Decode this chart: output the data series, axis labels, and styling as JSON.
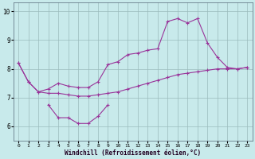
{
  "xlabel": "Windchill (Refroidissement éolien,°C)",
  "bg_color": "#c8eaeb",
  "grid_color": "#9bbcbd",
  "line_color": "#993399",
  "xlim": [
    -0.5,
    23.5
  ],
  "ylim": [
    5.5,
    10.3
  ],
  "yticks": [
    6,
    7,
    8,
    9,
    10
  ],
  "xticks": [
    0,
    1,
    2,
    3,
    4,
    5,
    6,
    7,
    8,
    9,
    10,
    11,
    12,
    13,
    14,
    15,
    16,
    17,
    18,
    19,
    20,
    21,
    22,
    23
  ],
  "line1_x": [
    0,
    1,
    2,
    3,
    4,
    5,
    6,
    7,
    8,
    9,
    10,
    11,
    12,
    13,
    14,
    15,
    16,
    17,
    18,
    19,
    20,
    21,
    22,
    23
  ],
  "line1_y": [
    8.2,
    7.55,
    7.2,
    7.15,
    7.15,
    7.1,
    7.05,
    7.05,
    7.1,
    7.15,
    7.2,
    7.3,
    7.4,
    7.5,
    7.6,
    7.7,
    7.8,
    7.85,
    7.9,
    7.95,
    8.0,
    8.0,
    8.0,
    8.05
  ],
  "line2_x": [
    0,
    1,
    2,
    3,
    4,
    5,
    6,
    7,
    8,
    9,
    10,
    11,
    12,
    13,
    14,
    15,
    16,
    17,
    18,
    19,
    20,
    21,
    22,
    23
  ],
  "line2_y": [
    8.2,
    7.55,
    7.2,
    7.3,
    7.5,
    7.4,
    7.35,
    7.35,
    7.55,
    8.15,
    8.25,
    8.5,
    8.55,
    8.65,
    8.7,
    9.65,
    9.75,
    9.6,
    9.75,
    8.9,
    8.4,
    8.05,
    8.0,
    8.05
  ],
  "line3_x": [
    3,
    4,
    5,
    6,
    7,
    8,
    9
  ],
  "line3_y": [
    6.75,
    6.3,
    6.3,
    6.1,
    6.1,
    6.35,
    6.75
  ]
}
